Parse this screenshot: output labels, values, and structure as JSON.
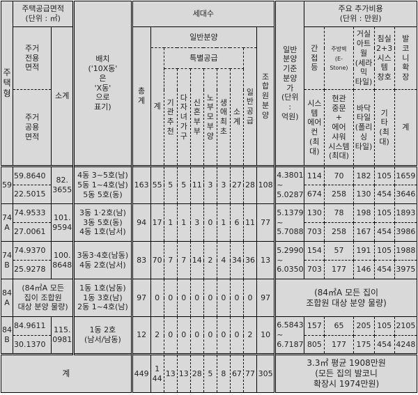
{
  "header": {
    "housing_type": "주\n택\n형",
    "supply_area": "주택공급면적\n(단위 : ㎡)",
    "exclusive_area": "주거\n전용\n면적",
    "common_area": "주거\n공용\n면적",
    "area_subtotal": "소계",
    "layout": "배치\n('10X동'\n은\n'X동'\n으로\n표기)",
    "households": "세대수",
    "grand_total": "총\n계",
    "general_sale": "일반분양",
    "special_supply": "특별공급",
    "special_total": "계",
    "institution": "기\n관\n추\n천",
    "multi_child": "다\n자\n녀\n가\n구",
    "newlywed": "신\n혼\n부\n부",
    "elderly_parents": "노\n부\n모\n부\n양",
    "first_time": "생\n애\n최\n초",
    "special_subtotal": "소\n계",
    "general_supply": "일\n반\n공\n급",
    "member_sale": "조\n합\n원\n분\n양",
    "sale_price": "일반\n분양\n기준\n분양\n가\n(단위\n:\n억원)",
    "extra_costs": "주요 추가비용\n(단위 : 만원)",
    "indirect_light": "간\n접\n등",
    "kitchen_wall": "주방벽\n(E-\nStone)",
    "living_artwall": "거실\n아트\n월\n(세라\n믹\n타일)",
    "bedroom_window": "침실\n2+3\n시스\n템\n창호",
    "balcony": "발\n코\n니\n확\n장",
    "system_aircon": "시스\n템\n에어\n컨\n(최\n대)",
    "entrance_door": "현관\n중문\n+\n에어\n샤워\n시스템\n(최대)",
    "floor_tile": "바닥\n타일\n(폴리\n싱\n타일)",
    "other": "기\n타\n(최\n대)",
    "cost_total": "계"
  },
  "rows": [
    {
      "type": "59",
      "exclusive": "59.8640",
      "common": "22.5015",
      "subtotal": "82.\n3655",
      "layout": "4동 3~5호(남)\n5동 1~4호(남)\n5동 5호(동)",
      "counts": [
        "163",
        "55",
        "5",
        "5",
        "11",
        "3",
        "3",
        "27",
        "28",
        "108"
      ],
      "price": "4.3801\n~\n5.0287",
      "costs1": [
        "114",
        "70",
        "182",
        "105",
        "1659"
      ],
      "costs2": [
        "674",
        "258",
        "130",
        "454",
        "3646"
      ]
    },
    {
      "type": "74\nA",
      "exclusive": "74.9533",
      "common": "27.0061",
      "subtotal": "101.\n9594",
      "layout": "3동 1·2호(남)\n3동 5호(동)\n4동 1호(남서)",
      "counts": [
        "94",
        "17",
        "1",
        "1",
        "3",
        "0",
        "1",
        "6",
        "11",
        "77"
      ],
      "price": "5.1379\n~\n5.7088",
      "costs1": [
        "130",
        "78",
        "198",
        "105",
        "1893"
      ],
      "costs2": [
        "703",
        "258",
        "167",
        "454",
        "3986"
      ]
    },
    {
      "type": "74\nB",
      "exclusive": "74.9370",
      "common": "25.9278",
      "subtotal": "100.\n8648",
      "layout": "3동3·4호(남동)\n4동 2호(남서)",
      "counts": [
        "83",
        "70",
        "7",
        "7",
        "14",
        "2",
        "4",
        "34",
        "36",
        "13"
      ],
      "price": "5.2990\n~\n6.0350",
      "costs1": [
        "154",
        "57",
        "191",
        "105",
        "1988"
      ],
      "costs2": [
        "703",
        "177",
        "146",
        "454",
        "3975"
      ]
    },
    {
      "type": "84\nA",
      "area_note": "(84㎡A 모든\n집이 조합원\n대상 분양 물량)",
      "layout": "1동 1호(남동)\n1동 3호(남)\n2동 1~4호(남)",
      "counts": [
        "97",
        "0",
        "0",
        "0",
        "0",
        "0",
        "0",
        "0",
        "0",
        "97"
      ],
      "cost_note": "(84㎡A 모든 집이\n조합원 대상 분양 물량)"
    },
    {
      "type": "84\nB",
      "exclusive": "84.9611",
      "common": "30.1370",
      "subtotal": "115.\n0981",
      "layout": "1동 2호\n(남서/남동)",
      "counts": [
        "12",
        "2",
        "0",
        "0",
        "0",
        "0",
        "0",
        "0",
        "2",
        "10"
      ],
      "price": "6.5843\n~\n6.7187",
      "costs1": [
        "157",
        "65",
        "205",
        "105",
        "2105"
      ],
      "costs2": [
        "805",
        "177",
        "175",
        "454",
        "4248"
      ]
    }
  ],
  "total": {
    "label": "계",
    "counts": [
      "449",
      "1\n44",
      "13",
      "13",
      "28",
      "5",
      "8",
      "67",
      "77",
      "305"
    ],
    "cost_note": "3.3㎡ 평균 1908만원\n(모든 집의 발코니\n확장시 1974만원)"
  }
}
